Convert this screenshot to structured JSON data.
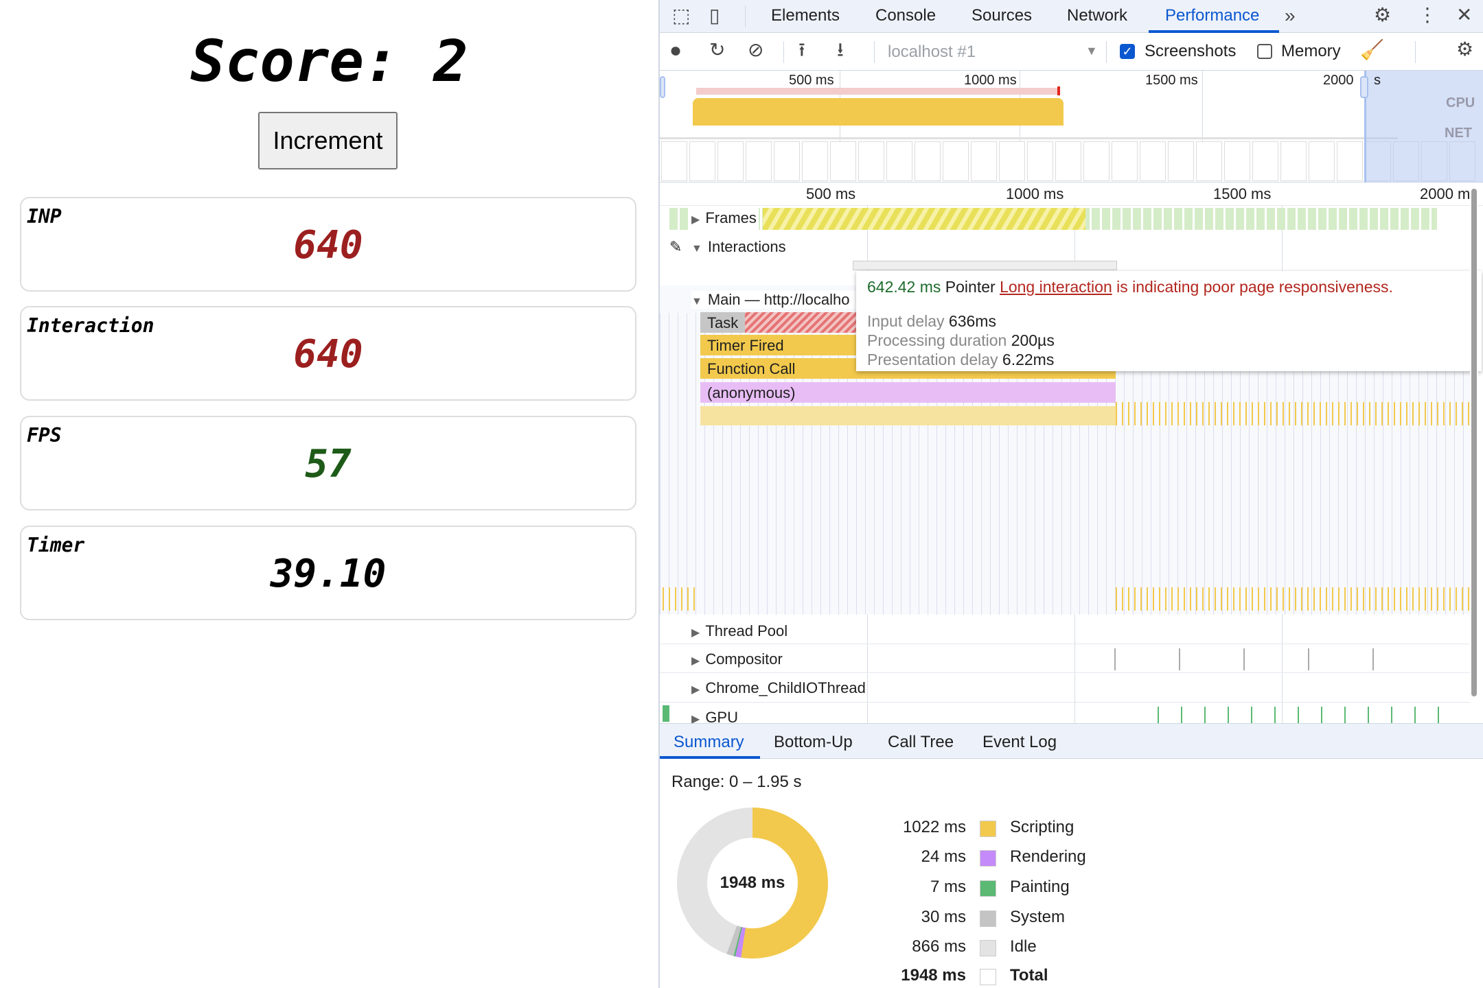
{
  "app": {
    "score": "Score: 2",
    "increment_label": "Increment",
    "cards": [
      {
        "label": "INP",
        "value": "640",
        "color": "#9c1f1f"
      },
      {
        "label": "Interaction",
        "value": "640",
        "color": "#9c1f1f"
      },
      {
        "label": "FPS",
        "value": "57",
        "color": "#1e5a18"
      },
      {
        "label": "Timer",
        "value": "39.10",
        "color": "#000000"
      }
    ]
  },
  "devtools": {
    "tabs": [
      "Elements",
      "Console",
      "Sources",
      "Network",
      "Performance"
    ],
    "active_tab": "Performance",
    "toolbar": {
      "target": "localhost #1",
      "screenshots_label": "Screenshots",
      "screenshots_checked": true,
      "memory_label": "Memory",
      "memory_checked": false
    },
    "overview": {
      "ticks": [
        "500 ms",
        "1000 ms",
        "1500 ms",
        "2000"
      ],
      "tick_suffix": "s",
      "cpu_label": "CPU",
      "net_label": "NET"
    },
    "ruler_ticks": [
      "500 ms",
      "1000 ms",
      "1500 ms",
      "2000 m"
    ],
    "tracks": {
      "frames": "Frames",
      "interactions": "Interactions",
      "main": "Main — http://localho",
      "thread_pool": "Thread Pool",
      "compositor": "Compositor",
      "child_io": "Chrome_ChildIOThread",
      "gpu": "GPU"
    },
    "flame": {
      "task": "Task",
      "timer": "Timer Fired",
      "function": "Function Call",
      "anon": "(anonymous)"
    },
    "tooltip": {
      "duration": "642.42 ms",
      "type": "Pointer",
      "link": "Long interaction",
      "message": " is indicating poor page responsiveness.",
      "rows": [
        {
          "label": "Input delay",
          "value": "636ms"
        },
        {
          "label": "Processing duration",
          "value": "200µs"
        },
        {
          "label": "Presentation delay",
          "value": "6.22ms"
        }
      ]
    },
    "bottom_tabs": [
      "Summary",
      "Bottom-Up",
      "Call Tree",
      "Event Log"
    ],
    "summary": {
      "range": "Range: 0 – 1.95 s",
      "total_center": "1948 ms",
      "legend": [
        {
          "value": "1022 ms",
          "label": "Scripting",
          "color": "#f2c94c",
          "ms": 1022
        },
        {
          "value": "24 ms",
          "label": "Rendering",
          "color": "#c58af9",
          "ms": 24
        },
        {
          "value": "7 ms",
          "label": "Painting",
          "color": "#5bb974",
          "ms": 7
        },
        {
          "value": "30 ms",
          "label": "System",
          "color": "#c4c4c4",
          "ms": 30
        },
        {
          "value": "866 ms",
          "label": "Idle",
          "color": "#e3e3e3",
          "ms": 866
        },
        {
          "value": "1948 ms",
          "label": "Total",
          "color": "#ffffff",
          "ms": 1948
        }
      ]
    }
  }
}
